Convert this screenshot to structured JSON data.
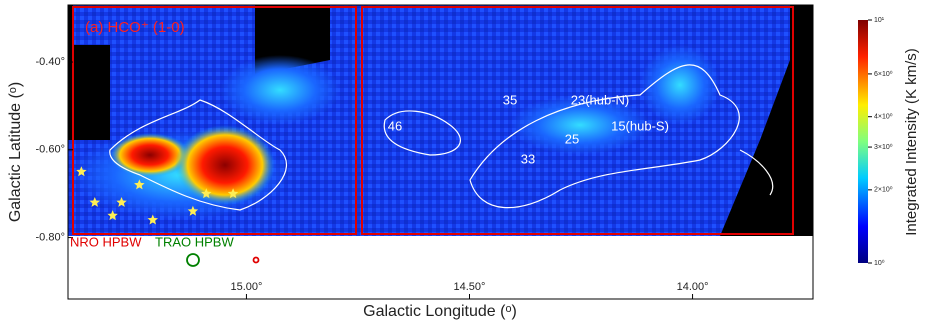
{
  "chart_data": {
    "type": "map",
    "title": "(a) HCO⁺ (1-0)",
    "xlabel": "Galactic Longitude (ᵒ)",
    "ylabel": "Galactic Latitude (ᵒ)",
    "xlim": [
      15.4,
      13.73
    ],
    "ylim": [
      -0.94,
      -0.27
    ],
    "xticks": [
      {
        "value": 15.0,
        "label": "15.00°"
      },
      {
        "value": 14.5,
        "label": "14.50°"
      },
      {
        "value": 14.0,
        "label": "14.00°"
      }
    ],
    "yticks": [
      {
        "value": -0.4,
        "label": "-0.40°"
      },
      {
        "value": -0.6,
        "label": "-0.60°"
      },
      {
        "value": -0.8,
        "label": "-0.80°"
      }
    ],
    "markers": {
      "x": [
        15.37,
        15.34,
        15.3,
        15.28,
        15.24,
        15.21,
        15.12,
        15.09,
        15.03
      ],
      "y": [
        -0.65,
        -0.72,
        -0.75,
        -0.72,
        -0.68,
        -0.76,
        -0.74,
        -0.7,
        -0.7
      ],
      "color": "#ffee55"
    },
    "sources": [
      "35",
      "23(hub-N)",
      "46",
      "25",
      "15(hub-S)",
      "33"
    ],
    "beams": [
      {
        "label": "NRO HPBW",
        "color": "#e00000"
      },
      {
        "label": "TRAO HPBW",
        "color": "#008000"
      }
    ],
    "colorbar": {
      "label": "Integrated Intensity (K km/s)",
      "scale": "log",
      "clim": [
        1,
        10
      ],
      "ticks": [
        {
          "value": 10,
          "label": "10¹"
        },
        {
          "value": 6,
          "label": "6×10⁰"
        },
        {
          "value": 4,
          "label": "4×10⁰"
        },
        {
          "value": 3,
          "label": "3×10⁰"
        },
        {
          "value": 2,
          "label": "2×10⁰"
        },
        {
          "value": 1,
          "label": "10⁰"
        }
      ]
    }
  }
}
